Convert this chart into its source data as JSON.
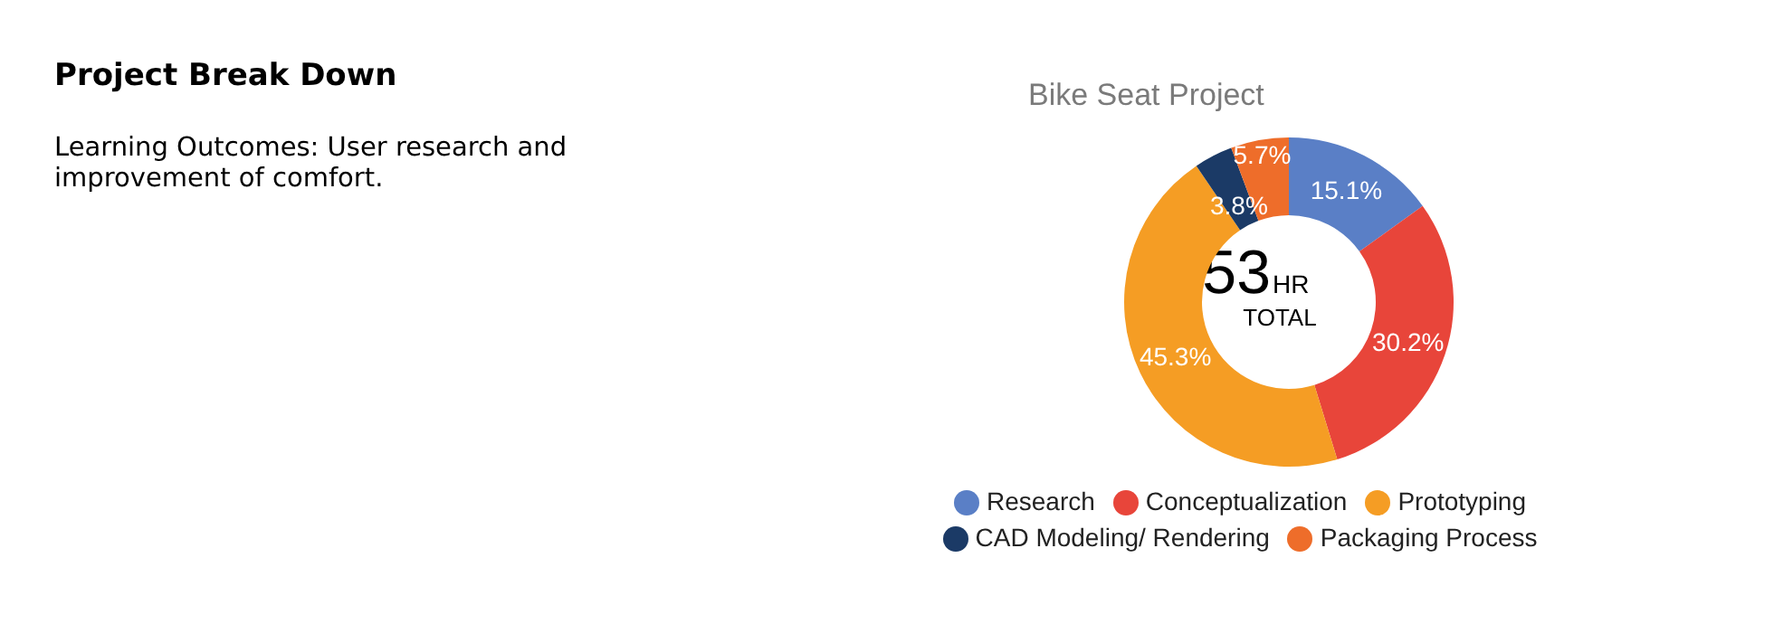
{
  "chart_data": {
    "type": "donut",
    "title": "Project Break Down",
    "subtitle": "Bike Seat Project",
    "annotations": [
      "Learning Outcomes: User research and improvement of comfort.",
      "53",
      "HR",
      "TOTAL"
    ],
    "categories": [
      "Research",
      "Conceptualization",
      "Prototyping",
      "CAD Modeling/ Rendering",
      "Packaging Process"
    ],
    "values": [
      15.1,
      30.2,
      45.3,
      3.8,
      5.7
    ],
    "value_labels": [
      "15.1%",
      "30.2%",
      "45.3%",
      "3.8%",
      "5.7%"
    ],
    "colors": [
      "#5a7fc6",
      "#e8453a",
      "#f59d24",
      "#1b3a66",
      "#ee6d2a"
    ],
    "legend": "bottom"
  }
}
